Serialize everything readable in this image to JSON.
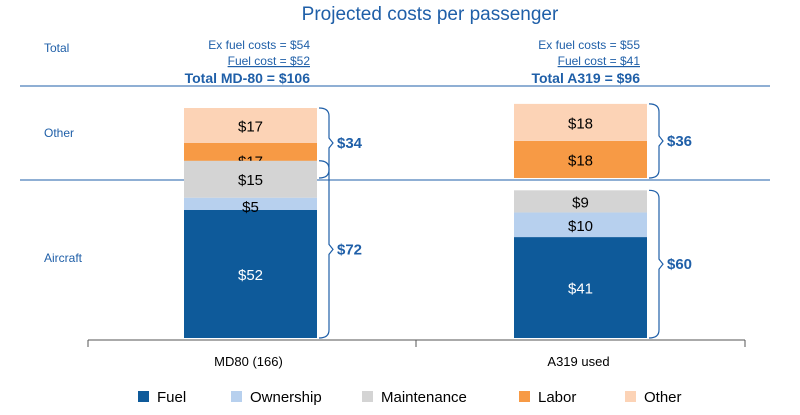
{
  "chart_data": {
    "type": "bar",
    "stacked": true,
    "title": "Projected costs per passenger",
    "categories": [
      "MD80 (166)",
      "A319 used"
    ],
    "panels": [
      {
        "label": "Total"
      },
      {
        "label": "Other",
        "series": [
          "Labor",
          "Other"
        ]
      },
      {
        "label": "Aircraft",
        "series": [
          "Fuel",
          "Ownership",
          "Maintenance"
        ]
      }
    ],
    "series": [
      {
        "name": "Fuel",
        "color": "#0e5a9a",
        "values": [
          52,
          41
        ],
        "labels": [
          "$52",
          "$41"
        ]
      },
      {
        "name": "Ownership",
        "color": "#b7d0ee",
        "values": [
          5,
          10
        ],
        "labels": [
          "$5",
          "$10"
        ]
      },
      {
        "name": "Maintenance",
        "color": "#d4d4d4",
        "values": [
          15,
          9
        ],
        "labels": [
          "$15",
          "$9"
        ]
      },
      {
        "name": "Labor",
        "color": "#f79a45",
        "values": [
          17,
          18
        ],
        "labels": [
          "$17",
          "$18"
        ]
      },
      {
        "name": "Other",
        "color": "#fcd3b6",
        "values": [
          17,
          18
        ],
        "labels": [
          "$17",
          "$18"
        ]
      }
    ],
    "totals": [
      {
        "ex_fuel": "Ex fuel costs = $54",
        "fuel": "Fuel cost = $52",
        "total": "Total MD-80 = $106",
        "other_sum": "$34",
        "aircraft_sum": "$72"
      },
      {
        "ex_fuel": "Ex fuel costs = $55",
        "fuel": "Fuel cost = $41",
        "total": "Total A319 = $96",
        "other_sum": "$36",
        "aircraft_sum": "$60"
      }
    ],
    "legend": {
      "position": "bottom",
      "items": [
        "Fuel",
        "Ownership",
        "Maintenance",
        "Labor",
        "Other"
      ]
    }
  }
}
